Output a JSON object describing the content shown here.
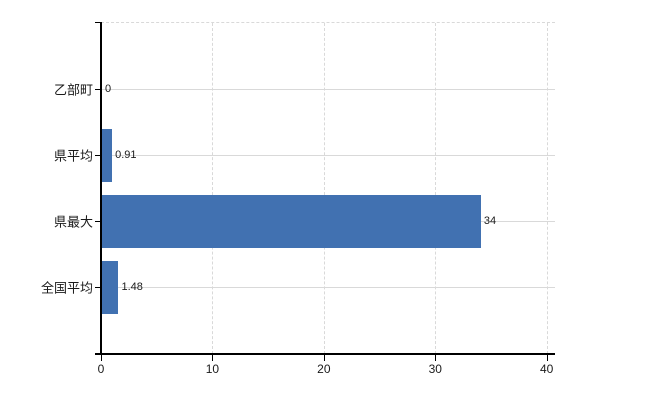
{
  "chart_data": {
    "type": "bar",
    "orientation": "horizontal",
    "title": "",
    "categories": [
      "乙部町",
      "県平均",
      "県最大",
      "全国平均"
    ],
    "values": [
      0,
      0.91,
      34,
      1.48
    ],
    "data_labels": [
      "0",
      "0.91",
      "34",
      "1.48"
    ],
    "x_ticks": [
      0,
      10,
      20,
      30,
      40
    ],
    "x_tick_labels": [
      "0",
      "10",
      "20",
      "30",
      "40"
    ],
    "xlim": [
      0,
      40.8
    ],
    "grid": "both",
    "vertical_grid_style": "dashed",
    "horizontal_grid_style": "solid",
    "legend": "none",
    "colors": {
      "bar": "#4171b1",
      "gridline": "#d9d9d9",
      "axis": "#000000",
      "text": "#1a1a1a",
      "background": "#ffffff"
    }
  }
}
